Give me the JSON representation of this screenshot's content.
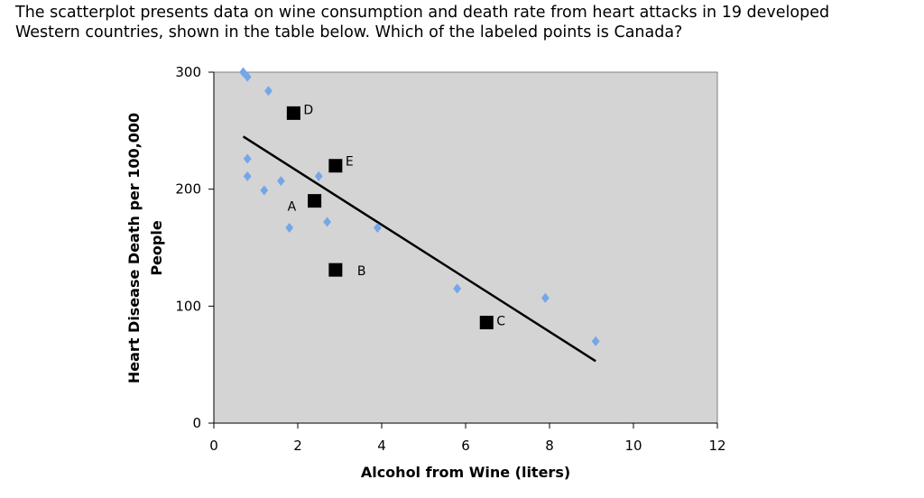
{
  "question": {
    "line1": "The scatterplot presents data on wine consumption and death rate from heart attacks in 19 developed",
    "line2": "Western countries, shown in the table below.  Which of the labeled points is Canada?"
  },
  "chart_data": {
    "type": "scatter",
    "xlabel": "Alcohol from Wine (liters)",
    "ylabel_line1": "Heart Disease Death per 100,000",
    "ylabel_line2": "People",
    "xlim": [
      0,
      12
    ],
    "ylim": [
      0,
      300
    ],
    "x_ticks": [
      0,
      2,
      4,
      6,
      8,
      10,
      12
    ],
    "y_ticks": [
      0,
      100,
      200,
      300
    ],
    "grid": false,
    "legend": "none",
    "background_color": "#d4d4d4",
    "series": [
      {
        "color": "#74a6e8",
        "marker": "diamond",
        "points": [
          {
            "x": 0.7,
            "y": 300
          },
          {
            "x": 0.8,
            "y": 296
          },
          {
            "x": 1.3,
            "y": 284
          },
          {
            "x": 0.8,
            "y": 226
          },
          {
            "x": 0.8,
            "y": 211
          },
          {
            "x": 1.2,
            "y": 199
          },
          {
            "x": 1.6,
            "y": 207
          },
          {
            "x": 2.5,
            "y": 211
          },
          {
            "x": 2.7,
            "y": 172
          },
          {
            "x": 1.8,
            "y": 167
          },
          {
            "x": 3.9,
            "y": 167
          },
          {
            "x": 5.8,
            "y": 115
          },
          {
            "x": 7.9,
            "y": 107
          },
          {
            "x": 9.1,
            "y": 70
          }
        ]
      },
      {
        "color": "#000000",
        "marker": "square",
        "points": [
          {
            "label": "A",
            "x": 2.4,
            "y": 190
          },
          {
            "label": "B",
            "x": 2.9,
            "y": 131
          },
          {
            "label": "C",
            "x": 6.5,
            "y": 86
          },
          {
            "label": "D",
            "x": 1.9,
            "y": 265
          },
          {
            "label": "E",
            "x": 2.9,
            "y": 220
          }
        ]
      }
    ],
    "trendline": {
      "color": "#000000",
      "from": {
        "x": 0.7,
        "y": 245
      },
      "to": {
        "x": 9.1,
        "y": 53
      }
    }
  }
}
